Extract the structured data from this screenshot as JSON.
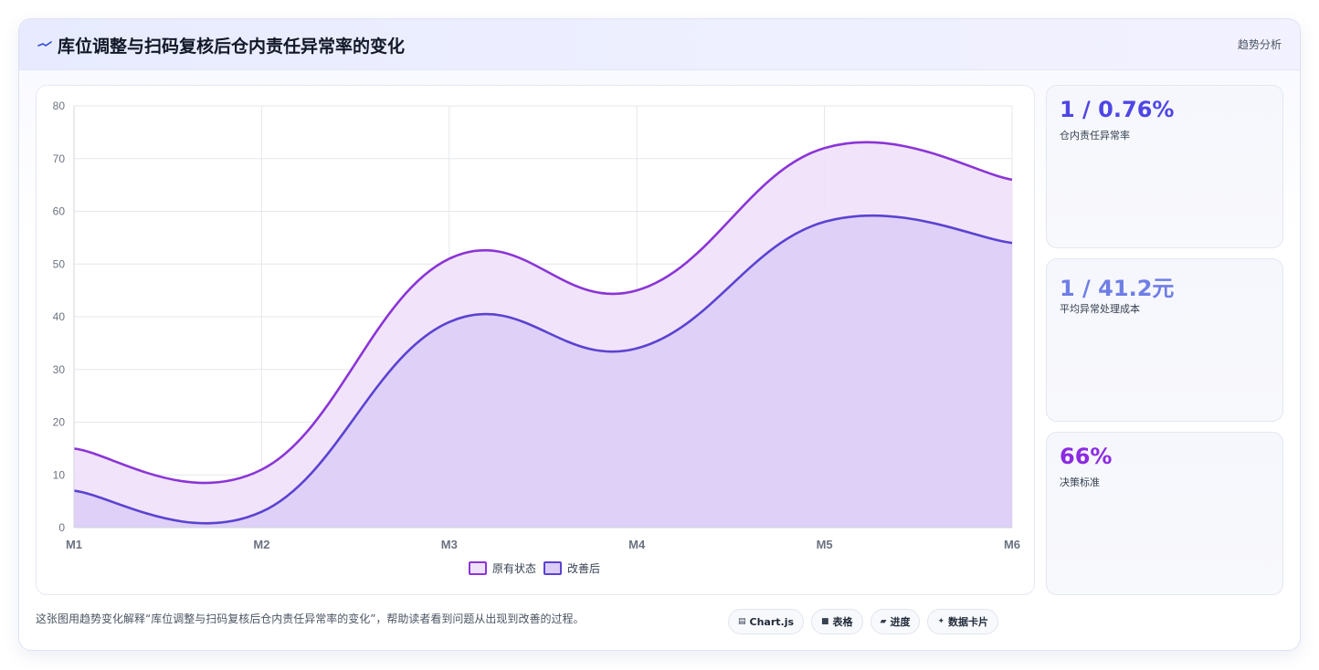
{
  "header": {
    "title": "库位调整与扫码复核后仓内责任异常率的变化",
    "tag": "趋势分析"
  },
  "stats": [
    {
      "value": "1 / 0.76%",
      "label": "仓内责任异常率",
      "color": "#4f46e5"
    },
    {
      "value": "1 / 41.2元",
      "label": "平均异常处理成本",
      "color": "#6f7ee6"
    },
    {
      "value": "66%",
      "label": "决策标准",
      "color": "#8b2be2"
    }
  ],
  "footer": {
    "description": "这张图用趋势变化解释“库位调整与扫码复核后仓内责任异常率的变化”，帮助读者看到问题从出现到改善的过程。",
    "chips": [
      {
        "icon": "chart-icon",
        "glyph": "▤",
        "label": "Chart.js"
      },
      {
        "icon": "table-icon",
        "glyph": "■",
        "label": "表格"
      },
      {
        "icon": "progress-icon",
        "glyph": "▰",
        "label": "进度"
      },
      {
        "icon": "card-icon",
        "glyph": "✦",
        "label": "数据卡片"
      }
    ]
  },
  "chart_data": {
    "type": "area",
    "categories": [
      "M1",
      "M2",
      "M3",
      "M4",
      "M5",
      "M6"
    ],
    "series": [
      {
        "name": "原有状态",
        "values": [
          15,
          11,
          51,
          45,
          72,
          66
        ],
        "color": "#8b35d6",
        "fill": "#f0e1fa"
      },
      {
        "name": "改善后",
        "values": [
          7,
          3,
          39,
          34,
          58,
          54
        ],
        "color": "#5b43d1",
        "fill": "#dccdf7"
      }
    ],
    "ylim": [
      0,
      80
    ],
    "yticks": [
      0,
      10,
      20,
      30,
      40,
      50,
      60,
      70,
      80
    ],
    "grid": true,
    "legend": "bottom"
  }
}
